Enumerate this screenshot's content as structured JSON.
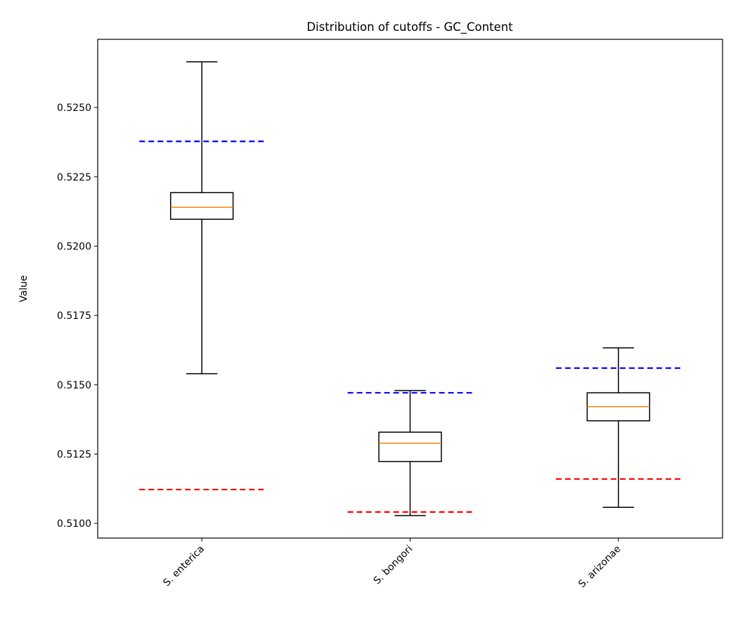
{
  "chart_data": {
    "type": "box",
    "title": "Distribution of cutoffs - GC_Content",
    "xlabel": "",
    "ylabel": "Value",
    "ylim": [
      0.50947,
      0.52746
    ],
    "yticks": [
      0.51,
      0.5125,
      0.515,
      0.5175,
      0.52,
      0.5225,
      0.525
    ],
    "ytick_labels": [
      "0.5100",
      "0.5125",
      "0.5150",
      "0.5175",
      "0.5200",
      "0.5225",
      "0.5250"
    ],
    "categories": [
      "S. enterica",
      "S. bongori",
      "S. arizonae"
    ],
    "boxes": [
      {
        "whisker_low": 0.5154,
        "q1": 0.52097,
        "median": 0.5214,
        "q3": 0.52193,
        "whisker_high": 0.52665,
        "upper_cutoff": 0.52378,
        "lower_cutoff": 0.51122
      },
      {
        "whisker_low": 0.51028,
        "q1": 0.51223,
        "median": 0.51289,
        "q3": 0.51329,
        "whisker_high": 0.51479,
        "upper_cutoff": 0.51471,
        "lower_cutoff": 0.51041
      },
      {
        "whisker_low": 0.51058,
        "q1": 0.5137,
        "median": 0.51421,
        "q3": 0.51471,
        "whisker_high": 0.51633,
        "upper_cutoff": 0.5156,
        "lower_cutoff": 0.5116
      }
    ],
    "grid": false,
    "colors": {
      "box": "#000000",
      "median": "#ff7f0e",
      "upper_cutoff": "#0000ff",
      "lower_cutoff": "#ff0000"
    }
  }
}
